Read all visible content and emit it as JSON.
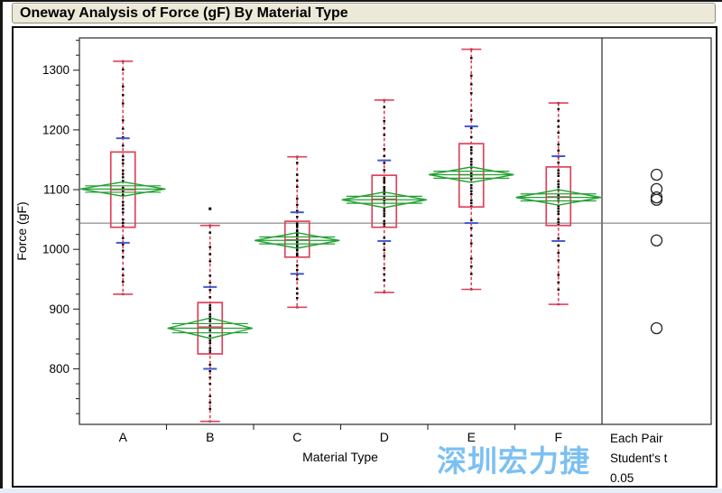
{
  "title": "Oneway Analysis of Force (gF) By Material Type",
  "watermark": {
    "text": "深圳宏力捷",
    "color": "#7CC0F2"
  },
  "right_panel": {
    "lines": [
      "Each Pair",
      "Student's t",
      "0.05"
    ]
  },
  "colors": {
    "box_red": "#E0425A",
    "diamond_green": "#22A033",
    "sd_blue": "#4257CC",
    "points_black": "#000000",
    "grand_mean_line": "#707070",
    "frame": "#2a2a2a",
    "title_bar_bg": "#EDE9D8",
    "watermark_blue": "#7CC0F2",
    "circle_stroke": "#222222"
  },
  "chart_data": {
    "type": "boxplot",
    "title": "Oneway Analysis of Force (gF) By Material Type",
    "xlabel": "Material Type",
    "ylabel": "Force (gF)",
    "ylim": [
      707,
      1354
    ],
    "y_major_ticks": [
      800,
      900,
      1000,
      1100,
      1200,
      1300
    ],
    "y_minor_step": 25,
    "grid": false,
    "grand_mean": 1044,
    "categories": [
      "A",
      "B",
      "C",
      "D",
      "E",
      "F"
    ],
    "groups": [
      {
        "label": "A",
        "min": 925,
        "q1": 1037,
        "median": 1100,
        "q3": 1163,
        "max": 1315,
        "mean": 1101,
        "ci_half": 12,
        "sd_low": 1011,
        "sd_high": 1186,
        "outliers": []
      },
      {
        "label": "B",
        "min": 712,
        "q1": 825,
        "median": 870,
        "q3": 911,
        "max": 1040,
        "mean": 868,
        "ci_half": 17,
        "sd_low": 800,
        "sd_high": 937,
        "outliers": [
          1068
        ]
      },
      {
        "label": "C",
        "min": 903,
        "q1": 987,
        "median": 1016,
        "q3": 1047,
        "max": 1155,
        "mean": 1015,
        "ci_half": 13,
        "sd_low": 959,
        "sd_high": 1062,
        "outliers": []
      },
      {
        "label": "D",
        "min": 928,
        "q1": 1037,
        "median": 1084,
        "q3": 1124,
        "max": 1250,
        "mean": 1083,
        "ci_half": 13,
        "sd_low": 1014,
        "sd_high": 1149,
        "outliers": []
      },
      {
        "label": "E",
        "min": 933,
        "q1": 1071,
        "median": 1125,
        "q3": 1177,
        "max": 1335,
        "mean": 1125,
        "ci_half": 13,
        "sd_low": 1044,
        "sd_high": 1206,
        "outliers": []
      },
      {
        "label": "F",
        "min": 908,
        "q1": 1040,
        "median": 1088,
        "q3": 1138,
        "max": 1245,
        "mean": 1087,
        "ci_half": 13,
        "sd_low": 1014,
        "sd_high": 1156,
        "outliers": []
      }
    ],
    "comparison_circles": {
      "test": "Each Pair Student's t",
      "alpha": "0.05",
      "radius_px": 6,
      "means": [
        {
          "group": "A",
          "mean": 1101
        },
        {
          "group": "B",
          "mean": 868
        },
        {
          "group": "C",
          "mean": 1015
        },
        {
          "group": "D",
          "mean": 1083
        },
        {
          "group": "E",
          "mean": 1125
        },
        {
          "group": "F",
          "mean": 1087
        }
      ]
    }
  }
}
